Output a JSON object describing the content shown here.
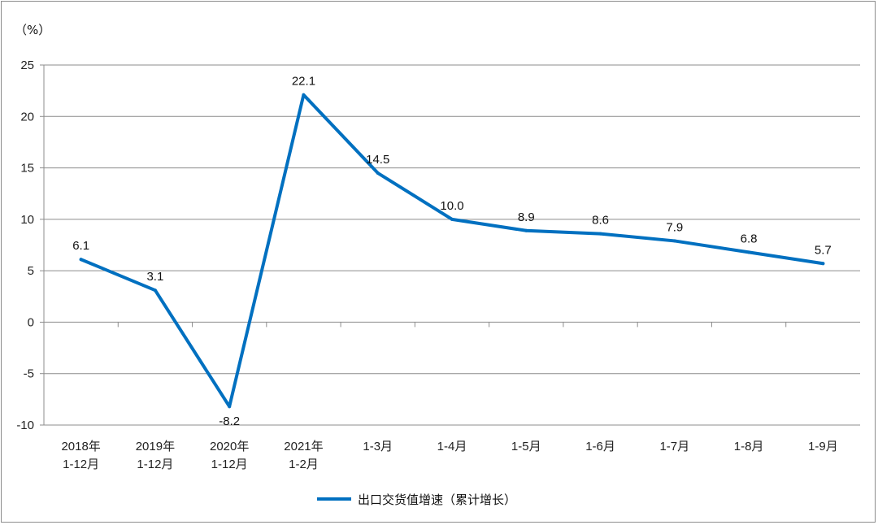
{
  "chart_data": {
    "type": "line",
    "unit_label": "（%）",
    "categories": [
      [
        "2018年",
        "1-12月"
      ],
      [
        "2019年",
        "1-12月"
      ],
      [
        "2020年",
        "1-12月"
      ],
      [
        "2021年",
        "1-2月"
      ],
      [
        "1-3月"
      ],
      [
        "1-4月"
      ],
      [
        "1-5月"
      ],
      [
        "1-6月"
      ],
      [
        "1-7月"
      ],
      [
        "1-8月"
      ],
      [
        "1-9月"
      ]
    ],
    "series": [
      {
        "name": "出口交货值增速（累计增长）",
        "values": [
          6.1,
          3.1,
          -8.2,
          22.1,
          14.5,
          10.0,
          8.9,
          8.6,
          7.9,
          6.8,
          5.7
        ],
        "labels": [
          "6.1",
          "3.1",
          "-8.2",
          "22.1",
          "14.5",
          "10.0",
          "8.9",
          "8.6",
          "7.9",
          "6.8",
          "5.7"
        ]
      }
    ],
    "ylim": [
      -10,
      25
    ],
    "yticks": [
      -10,
      -5,
      0,
      5,
      10,
      15,
      20,
      25
    ],
    "grid": true,
    "legend_position": "bottom-center",
    "line_color": "#0070c0"
  }
}
